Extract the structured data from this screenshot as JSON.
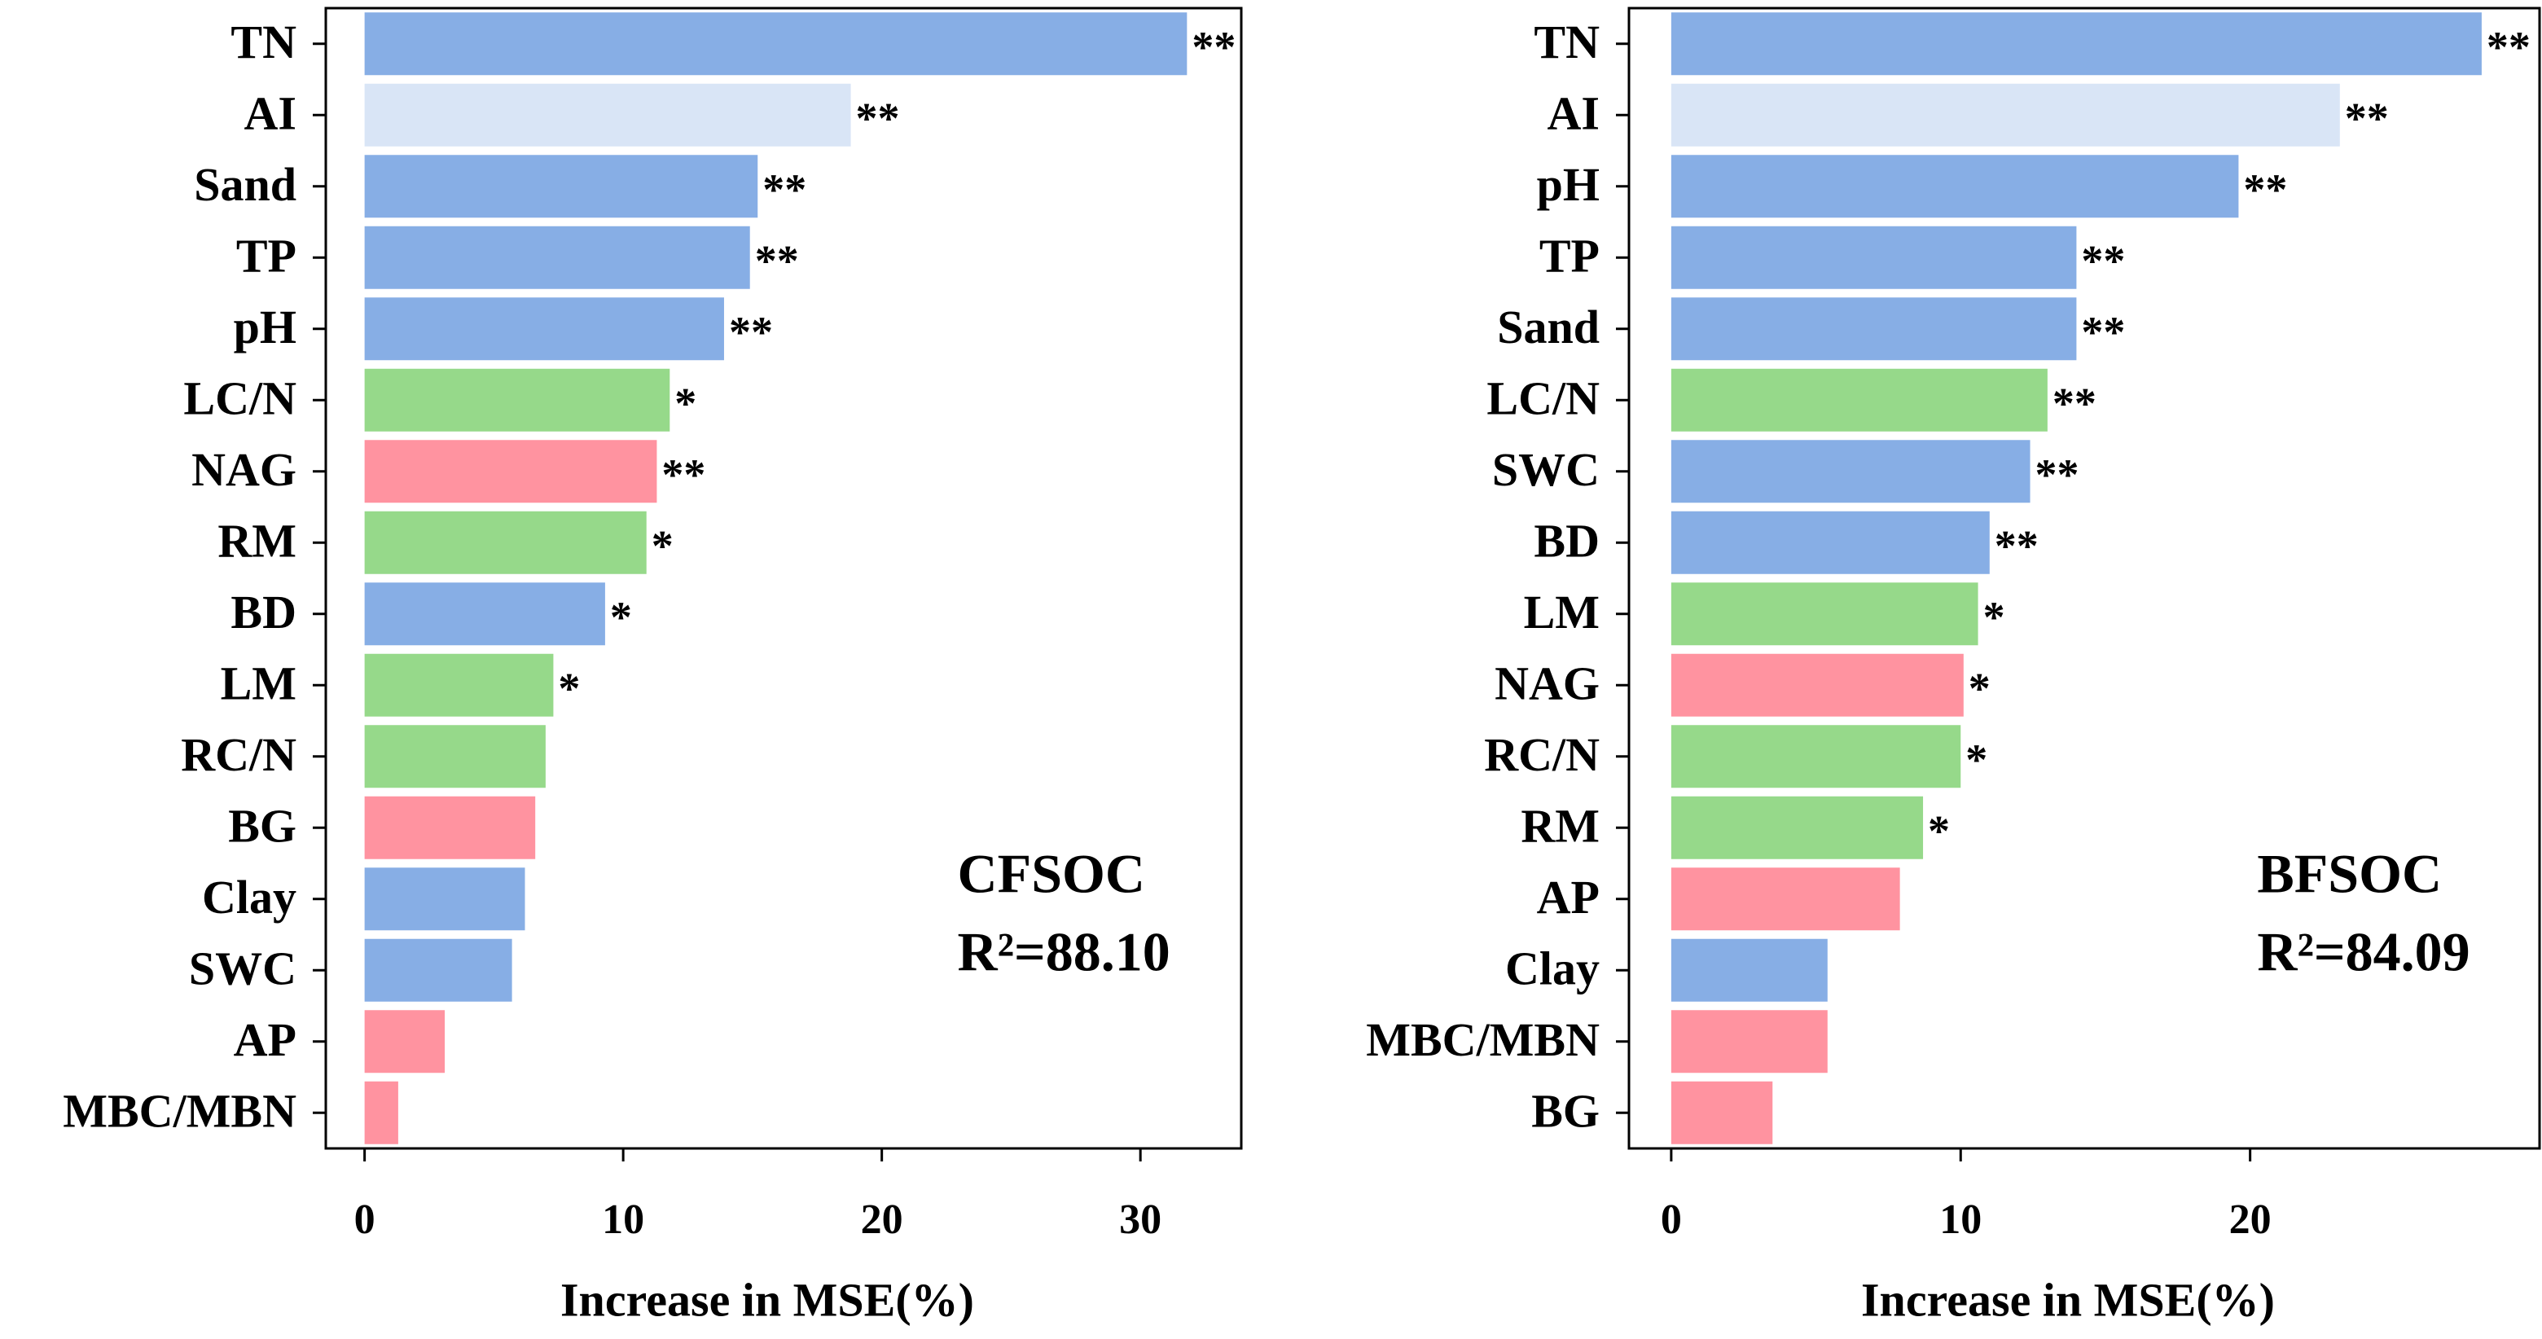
{
  "chart_data": [
    {
      "type": "bar",
      "orientation": "horizontal",
      "categories": [
        "TN",
        "AI",
        "Sand",
        "TP",
        "pH",
        "LC/N",
        "NAG",
        "RM",
        "BD",
        "LM",
        "RC/N",
        "BG",
        "Clay",
        "SWC",
        "AP",
        "MBC/MBN"
      ],
      "values": [
        31.8,
        18.8,
        15.2,
        14.9,
        13.9,
        11.8,
        11.3,
        10.9,
        9.3,
        7.3,
        7.0,
        6.6,
        6.2,
        5.7,
        3.1,
        1.3
      ],
      "colors": [
        "#87aee5",
        "#d9e5f6",
        "#87aee5",
        "#87aee5",
        "#87aee5",
        "#96d98a",
        "#ff93a0",
        "#96d98a",
        "#87aee5",
        "#96d98a",
        "#96d98a",
        "#ff93a0",
        "#87aee5",
        "#87aee5",
        "#ff93a0",
        "#ff93a0"
      ],
      "significance": [
        "**",
        "**",
        "**",
        "**",
        "**",
        "*",
        "**",
        "*",
        "*",
        "*",
        null,
        null,
        null,
        null,
        null,
        null
      ],
      "xlim": [
        -1.5,
        33.9
      ],
      "xticks": [
        0,
        10,
        20,
        30
      ],
      "x_label": "Increase in MSE(%)",
      "annotations": [
        "CFSOC",
        "R²=88.10"
      ]
    },
    {
      "type": "bar",
      "orientation": "horizontal",
      "categories": [
        "TN",
        "AI",
        "pH",
        "TP",
        "Sand",
        "LC/N",
        "SWC",
        "BD",
        "LM",
        "NAG",
        "RC/N",
        "RM",
        "AP",
        "Clay",
        "MBC/MBN",
        "BG"
      ],
      "values": [
        28.0,
        23.1,
        19.6,
        14.0,
        14.0,
        13.0,
        12.4,
        11.0,
        10.6,
        10.1,
        10.0,
        8.7,
        7.9,
        5.4,
        5.4,
        3.5
      ],
      "colors": [
        "#87aee5",
        "#d9e5f6",
        "#87aee5",
        "#87aee5",
        "#87aee5",
        "#96d98a",
        "#87aee5",
        "#87aee5",
        "#96d98a",
        "#ff93a0",
        "#96d98a",
        "#96d98a",
        "#ff93a0",
        "#87aee5",
        "#ff93a0",
        "#ff93a0"
      ],
      "significance": [
        "**",
        "**",
        "**",
        "**",
        "**",
        "**",
        "**",
        "**",
        "*",
        "*",
        "*",
        "*",
        null,
        null,
        null,
        null
      ],
      "xlim": [
        -1.46,
        30.0
      ],
      "xticks": [
        0,
        10,
        20
      ],
      "x_label": "Increase in MSE(%)",
      "annotations": [
        "BFSOC",
        "R²=84.09"
      ]
    }
  ]
}
